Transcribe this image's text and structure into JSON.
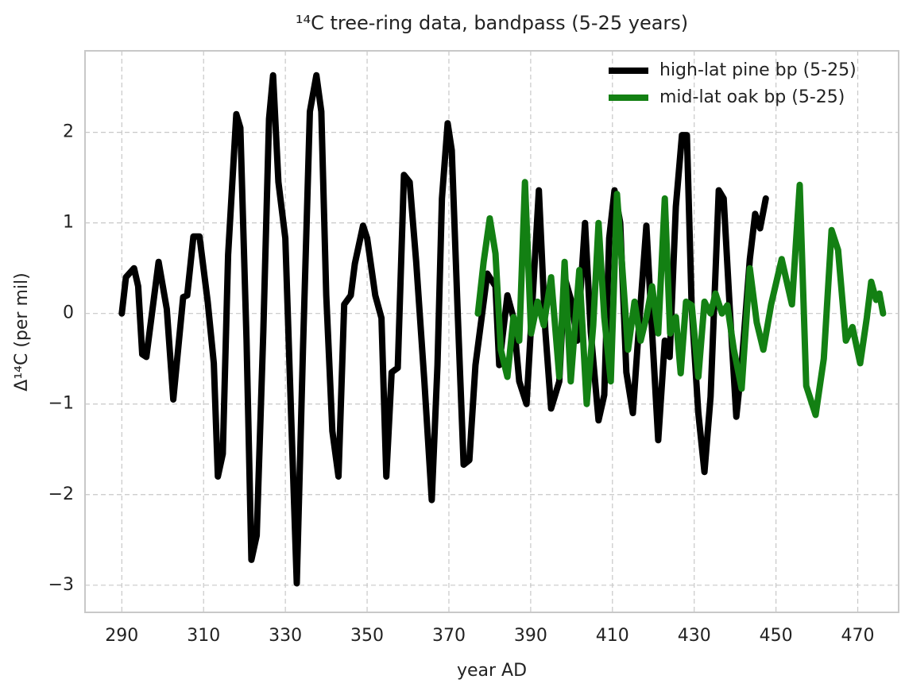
{
  "chart_data": {
    "type": "line",
    "title": "¹⁴C tree-ring data, bandpass (5-25 years)",
    "xlabel": "year AD",
    "ylabel": "Δ¹⁴C (per mil)",
    "xlim": [
      281,
      480
    ],
    "ylim": [
      -3.3,
      2.9
    ],
    "xticks": [
      290,
      310,
      330,
      350,
      370,
      390,
      410,
      430,
      450,
      470
    ],
    "yticks": [
      {
        "value": -3,
        "label": "−3"
      },
      {
        "value": -2,
        "label": "−2"
      },
      {
        "value": -1,
        "label": "−1"
      },
      0,
      1,
      2
    ],
    "grid": true,
    "legend": "upper right",
    "series": [
      {
        "name": "high-lat pine bp (5-25)",
        "color": "#000000",
        "x": [
          290,
          291,
          293,
          294,
          295,
          296,
          299,
          301,
          302.6,
          305,
          306,
          307.5,
          309,
          311,
          312.5,
          313.5,
          314.7,
          316,
          318,
          319,
          320.5,
          321.7,
          323,
          324.6,
          326,
          327,
          328.3,
          330,
          331.4,
          332.8,
          334.3,
          336,
          337.6,
          338.8,
          340,
          341.5,
          343,
          344.4,
          346,
          347,
          349,
          350,
          352,
          353.5,
          354.7,
          356,
          357.5,
          359,
          360.4,
          362,
          364,
          365.8,
          367.2,
          368.3,
          369.7,
          370.7,
          372.2,
          373.6,
          375,
          376.5,
          378,
          379.4,
          381.4,
          382.3,
          384.3,
          385.8,
          387.2,
          389,
          391,
          392,
          393.6,
          395,
          397,
          398.3,
          400,
          401.4,
          403.3,
          404.7,
          406.6,
          408,
          409.2,
          410.5,
          411.9,
          413.4,
          415,
          416.4,
          418.3,
          419.7,
          421.2,
          422.8,
          424,
          425.5,
          427,
          428.2,
          429.4,
          431,
          432.5,
          434,
          436,
          437.2,
          438.7,
          440.3,
          441.6,
          443.6,
          444.9,
          446.1,
          447.5
        ],
        "values": [
          0,
          0.4,
          0.5,
          0.3,
          -0.45,
          -0.48,
          0.57,
          0.05,
          -0.95,
          0.18,
          0.2,
          0.85,
          0.85,
          0.13,
          -0.55,
          -1.8,
          -1.55,
          0.65,
          2.2,
          2.05,
          -0.3,
          -2.72,
          -2.45,
          -0.2,
          2.15,
          2.63,
          1.45,
          0.83,
          -1.1,
          -2.98,
          -0.4,
          2.23,
          2.63,
          2.23,
          0.2,
          -1.3,
          -1.8,
          0.1,
          0.2,
          0.55,
          0.97,
          0.83,
          0.2,
          -0.05,
          -1.8,
          -0.65,
          -0.6,
          1.53,
          1.45,
          0.57,
          -0.75,
          -2.06,
          -0.57,
          1.27,
          2.1,
          1.8,
          -0.05,
          -1.67,
          -1.62,
          -0.57,
          -0.05,
          0.44,
          0.3,
          -0.57,
          0.2,
          -0.05,
          -0.75,
          -1.0,
          0.57,
          1.36,
          -0.2,
          -1.05,
          -0.75,
          0.4,
          0.13,
          -0.3,
          1.0,
          -0.2,
          -1.18,
          -0.9,
          0.83,
          1.36,
          1.0,
          -0.65,
          -1.1,
          -0.2,
          0.97,
          -0.2,
          -1.4,
          -0.3,
          -0.48,
          1.18,
          1.97,
          1.97,
          0.05,
          -1.1,
          -1.75,
          -0.92,
          1.36,
          1.27,
          0.05,
          -1.14,
          -0.57,
          0.6,
          1.1,
          0.94,
          1.27
        ]
      },
      {
        "name": "mid-lat oak bp (5-25)",
        "color": "#138013",
        "x": [
          377.1,
          378.5,
          380,
          381.4,
          382.7,
          384.3,
          385.8,
          387.2,
          388.6,
          390.1,
          391.7,
          393.2,
          395,
          397,
          398.3,
          399.8,
          401.9,
          403.7,
          405.3,
          406.6,
          408,
          409.6,
          411.1,
          412.5,
          413.8,
          415.4,
          416.9,
          418.3,
          419.7,
          421.2,
          422.8,
          424.1,
          425.5,
          426.7,
          428,
          429.4,
          431,
          432.5,
          434,
          435.2,
          436.8,
          438.1,
          439.7,
          441.6,
          443.6,
          445.3,
          446.9,
          448.8,
          451.4,
          453.9,
          455.8,
          457.4,
          459.7,
          461.7,
          463.6,
          465.2,
          467.1,
          468.7,
          470.6,
          472.2,
          473.3,
          474.5,
          475.3,
          476.2
        ],
        "values": [
          0,
          0.57,
          1.05,
          0.66,
          -0.4,
          -0.7,
          -0.04,
          -0.3,
          1.45,
          -0.22,
          0.13,
          -0.13,
          0.4,
          -0.7,
          0.57,
          -0.75,
          0.48,
          -1.0,
          -0.13,
          1.0,
          -0.04,
          -0.75,
          1.32,
          0.44,
          -0.4,
          0.13,
          -0.3,
          -0.04,
          0.3,
          -0.22,
          1.27,
          -0.22,
          -0.04,
          -0.66,
          0.13,
          0.09,
          -0.7,
          0.13,
          0,
          0.22,
          0,
          0.09,
          -0.4,
          -0.83,
          0.5,
          -0.1,
          -0.4,
          0.1,
          0.6,
          0.1,
          1.42,
          -0.8,
          -1.12,
          -0.5,
          0.92,
          0.7,
          -0.3,
          -0.15,
          -0.55,
          -0.05,
          0.35,
          0.15,
          0.22,
          0
        ]
      }
    ]
  }
}
